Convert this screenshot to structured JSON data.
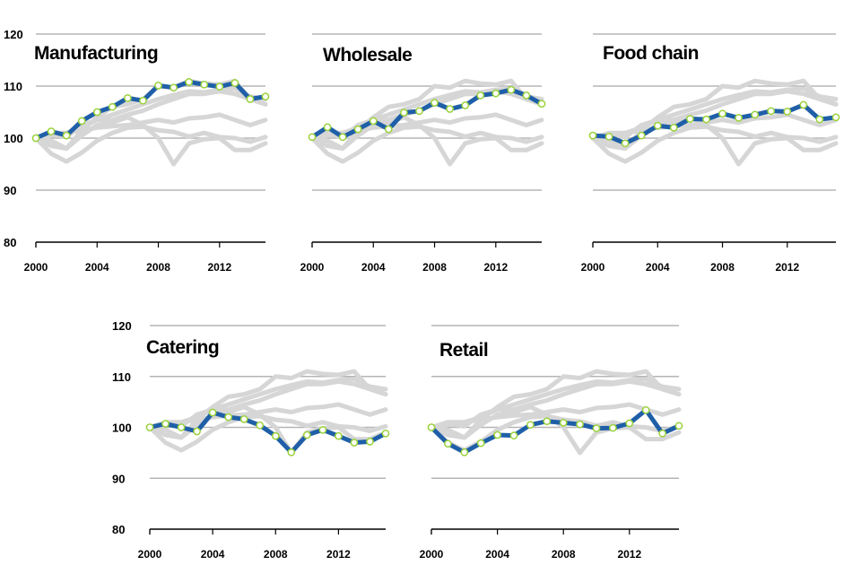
{
  "chart_data": [
    {
      "type": "line",
      "title": "Manufacturing",
      "x": [
        2000,
        2001,
        2002,
        2003,
        2004,
        2005,
        2006,
        2007,
        2008,
        2009,
        2010,
        2011,
        2012,
        2013,
        2014,
        2015
      ],
      "series": [
        {
          "values": [
            100,
            101.3,
            100.5,
            103.3,
            105,
            106,
            107.7,
            107.2,
            110.1,
            109.7,
            110.8,
            110.3,
            109.9,
            110.6,
            107.5,
            108
          ]
        }
      ],
      "background_series": [
        [
          100,
          97,
          95.5,
          97.2,
          99.5,
          101,
          102,
          102.2,
          101.5,
          101.2,
          100.3,
          101,
          100.2,
          100,
          99.3,
          100.2
        ],
        [
          100,
          98.5,
          98,
          100.5,
          102.5,
          103,
          104,
          102.5,
          100,
          95,
          99,
          99.8,
          100,
          97.7,
          97.7,
          99
        ],
        [
          100,
          99.5,
          98,
          101.5,
          104,
          106,
          106.5,
          107.5,
          110,
          109.7,
          111,
          110.5,
          110.3,
          111,
          107.5,
          106.5
        ],
        [
          100,
          100.8,
          100.2,
          102.5,
          103.5,
          104.5,
          105.5,
          106.5,
          107.5,
          108.3,
          109,
          108.8,
          109.3,
          109.5,
          108,
          107.5
        ],
        [
          100,
          101,
          101,
          102,
          103.5,
          103.5,
          104.5,
          105.3,
          106.5,
          107.5,
          108.5,
          108.5,
          109,
          108.5,
          107.5,
          106.5
        ],
        [
          100,
          100.5,
          101,
          101.5,
          102,
          102.3,
          102.5,
          103,
          103.5,
          103,
          103.8,
          104,
          104.5,
          103.5,
          102.5,
          103.5
        ]
      ],
      "xticks": [
        "2000",
        "2004",
        "2008",
        "2012"
      ],
      "yticks": [
        "80",
        "90",
        "100",
        "110",
        "120"
      ],
      "ylim": [
        80,
        120
      ],
      "xlim": [
        2000,
        2015
      ]
    },
    {
      "type": "line",
      "title": "Wholesale",
      "x": [
        2000,
        2001,
        2002,
        2003,
        2004,
        2005,
        2006,
        2007,
        2008,
        2009,
        2010,
        2011,
        2012,
        2013,
        2014,
        2015
      ],
      "series": [
        {
          "values": [
            100.2,
            102.1,
            100.2,
            101.7,
            103.3,
            101.7,
            104.9,
            105.2,
            106.8,
            105.6,
            106.3,
            108.2,
            108.6,
            109.3,
            108.2,
            106.6
          ]
        }
      ],
      "background_series": [
        [
          100,
          97,
          95.5,
          97.2,
          99.5,
          101,
          102,
          102.2,
          101.5,
          101.2,
          100.3,
          101,
          100.2,
          100,
          99.3,
          100.2
        ],
        [
          100,
          98.5,
          98,
          100.5,
          102.5,
          103,
          104,
          102.5,
          100,
          95,
          99,
          99.8,
          100,
          97.7,
          97.7,
          99
        ],
        [
          100,
          99.5,
          98,
          101.5,
          104,
          106,
          106.5,
          107.5,
          110,
          109.7,
          111,
          110.5,
          110.3,
          111,
          107.5,
          106.5
        ],
        [
          100,
          100.8,
          100.2,
          102.5,
          103.5,
          104.5,
          105.5,
          106.5,
          107.5,
          108.3,
          109,
          108.8,
          109.3,
          109.5,
          108,
          107.5
        ],
        [
          100,
          101,
          101,
          102,
          103.5,
          103.5,
          104.5,
          105.3,
          106.5,
          107.5,
          108.5,
          108.5,
          109,
          108.5,
          107.5,
          106.5
        ],
        [
          100,
          100.5,
          101,
          101.5,
          102,
          102.3,
          102.5,
          103,
          103.5,
          103,
          103.8,
          104,
          104.5,
          103.5,
          102.5,
          103.5
        ]
      ],
      "xticks": [
        "2000",
        "2004",
        "2008",
        "2012"
      ],
      "ylim": [
        80,
        120
      ],
      "xlim": [
        2000,
        2015
      ]
    },
    {
      "type": "line",
      "title": "Food chain",
      "x": [
        2000,
        2001,
        2002,
        2003,
        2004,
        2005,
        2006,
        2007,
        2008,
        2009,
        2010,
        2011,
        2012,
        2013,
        2014,
        2015
      ],
      "series": [
        {
          "values": [
            100.5,
            100.3,
            99,
            100.5,
            102.4,
            102,
            103.7,
            103.6,
            104.7,
            103.9,
            104.5,
            105.2,
            105.1,
            106.4,
            103.6,
            104
          ]
        }
      ],
      "background_series": [
        [
          100,
          97,
          95.5,
          97.2,
          99.5,
          101,
          102,
          102.2,
          101.5,
          101.2,
          100.3,
          101,
          100.2,
          100,
          99.3,
          100.2
        ],
        [
          100,
          98.5,
          98,
          100.5,
          102.5,
          103,
          104,
          102.5,
          100,
          95,
          99,
          99.8,
          100,
          97.7,
          97.7,
          99
        ],
        [
          100,
          99.5,
          98,
          101.5,
          104,
          106,
          106.5,
          107.5,
          110,
          109.7,
          111,
          110.5,
          110.3,
          111,
          107.5,
          106.5
        ],
        [
          100,
          100.8,
          100.2,
          102.5,
          103.5,
          104.5,
          105.5,
          106.5,
          107.5,
          108.3,
          109,
          108.8,
          109.3,
          109.5,
          108,
          107.5
        ],
        [
          100,
          101,
          101,
          102,
          103.5,
          103.5,
          104.5,
          105.3,
          106.5,
          107.5,
          108.5,
          108.5,
          109,
          108.5,
          107.5,
          106.5
        ],
        [
          100,
          100.5,
          101,
          101.5,
          102,
          102.3,
          102.5,
          103,
          103.5,
          103,
          103.8,
          104,
          104.5,
          103.5,
          102.5,
          103.5
        ]
      ],
      "xticks": [
        "2000",
        "2004",
        "2008",
        "2012"
      ],
      "ylim": [
        80,
        120
      ],
      "xlim": [
        2000,
        2015
      ]
    },
    {
      "type": "line",
      "title": "Catering",
      "x": [
        2000,
        2001,
        2002,
        2003,
        2004,
        2005,
        2006,
        2007,
        2008,
        2009,
        2010,
        2011,
        2012,
        2013,
        2014,
        2015
      ],
      "series": [
        {
          "values": [
            100,
            100.7,
            100,
            99.2,
            102.9,
            102,
            101.6,
            100.4,
            98.3,
            95.1,
            98.5,
            99.5,
            98.3,
            97,
            97.2,
            98.8
          ]
        }
      ],
      "background_series": [
        [
          100,
          97,
          95.5,
          97.2,
          99.5,
          101,
          102,
          102.2,
          101.5,
          101.2,
          100.3,
          101,
          100.2,
          100,
          99.3,
          100.2
        ],
        [
          100,
          98.5,
          98,
          100.5,
          102.5,
          103,
          104,
          102.5,
          100,
          95,
          99,
          99.8,
          100,
          97.7,
          97.7,
          99
        ],
        [
          100,
          99.5,
          98,
          101.5,
          104,
          106,
          106.5,
          107.5,
          110,
          109.7,
          111,
          110.5,
          110.3,
          111,
          107.5,
          106.5
        ],
        [
          100,
          100.8,
          100.2,
          102.5,
          103.5,
          104.5,
          105.5,
          106.5,
          107.5,
          108.3,
          109,
          108.8,
          109.3,
          109.5,
          108,
          107.5
        ],
        [
          100,
          101,
          101,
          102,
          103.5,
          103.5,
          104.5,
          105.3,
          106.5,
          107.5,
          108.5,
          108.5,
          109,
          108.5,
          107.5,
          106.5
        ],
        [
          100,
          100.5,
          101,
          101.5,
          102,
          102.3,
          102.5,
          103,
          103.5,
          103,
          103.8,
          104,
          104.5,
          103.5,
          102.5,
          103.5
        ]
      ],
      "xticks": [
        "2000",
        "2004",
        "2008",
        "2012"
      ],
      "yticks": [
        "80",
        "90",
        "100",
        "110",
        "120"
      ],
      "ylim": [
        80,
        120
      ],
      "xlim": [
        2000,
        2015
      ]
    },
    {
      "type": "line",
      "title": "Retail",
      "x": [
        2000,
        2001,
        2002,
        2003,
        2004,
        2005,
        2006,
        2007,
        2008,
        2009,
        2010,
        2011,
        2012,
        2013,
        2014,
        2015
      ],
      "series": [
        {
          "values": [
            100,
            96.8,
            95.1,
            96.9,
            98.5,
            98.4,
            100.5,
            101.2,
            100.9,
            100.6,
            99.8,
            99.9,
            100.8,
            103.4,
            98.8,
            100.3
          ]
        }
      ],
      "background_series": [
        [
          100,
          97,
          95.5,
          97.2,
          99.5,
          101,
          102,
          102.2,
          101.5,
          101.2,
          100.3,
          101,
          100.2,
          100,
          99.3,
          100.2
        ],
        [
          100,
          98.5,
          98,
          100.5,
          102.5,
          103,
          104,
          102.5,
          100,
          95,
          99,
          99.8,
          100,
          97.7,
          97.7,
          99
        ],
        [
          100,
          99.5,
          98,
          101.5,
          104,
          106,
          106.5,
          107.5,
          110,
          109.7,
          111,
          110.5,
          110.3,
          111,
          107.5,
          106.5
        ],
        [
          100,
          100.8,
          100.2,
          102.5,
          103.5,
          104.5,
          105.5,
          106.5,
          107.5,
          108.3,
          109,
          108.8,
          109.3,
          109.5,
          108,
          107.5
        ],
        [
          100,
          101,
          101,
          102,
          103.5,
          103.5,
          104.5,
          105.3,
          106.5,
          107.5,
          108.5,
          108.5,
          109,
          108.5,
          107.5,
          106.5
        ],
        [
          100,
          100.5,
          101,
          101.5,
          102,
          102.3,
          102.5,
          103,
          103.5,
          103,
          103.8,
          104,
          104.5,
          103.5,
          102.5,
          103.5
        ]
      ],
      "xticks": [
        "2000",
        "2004",
        "2008",
        "2012"
      ],
      "ylim": [
        80,
        120
      ],
      "xlim": [
        2000,
        2015
      ]
    }
  ],
  "colors": {
    "highlight_line": "#1f5fa8",
    "highlight_marker_edge": "#9ad23a",
    "background_lines": "#d6d6d6",
    "gridlines": "#b5b5b5"
  }
}
